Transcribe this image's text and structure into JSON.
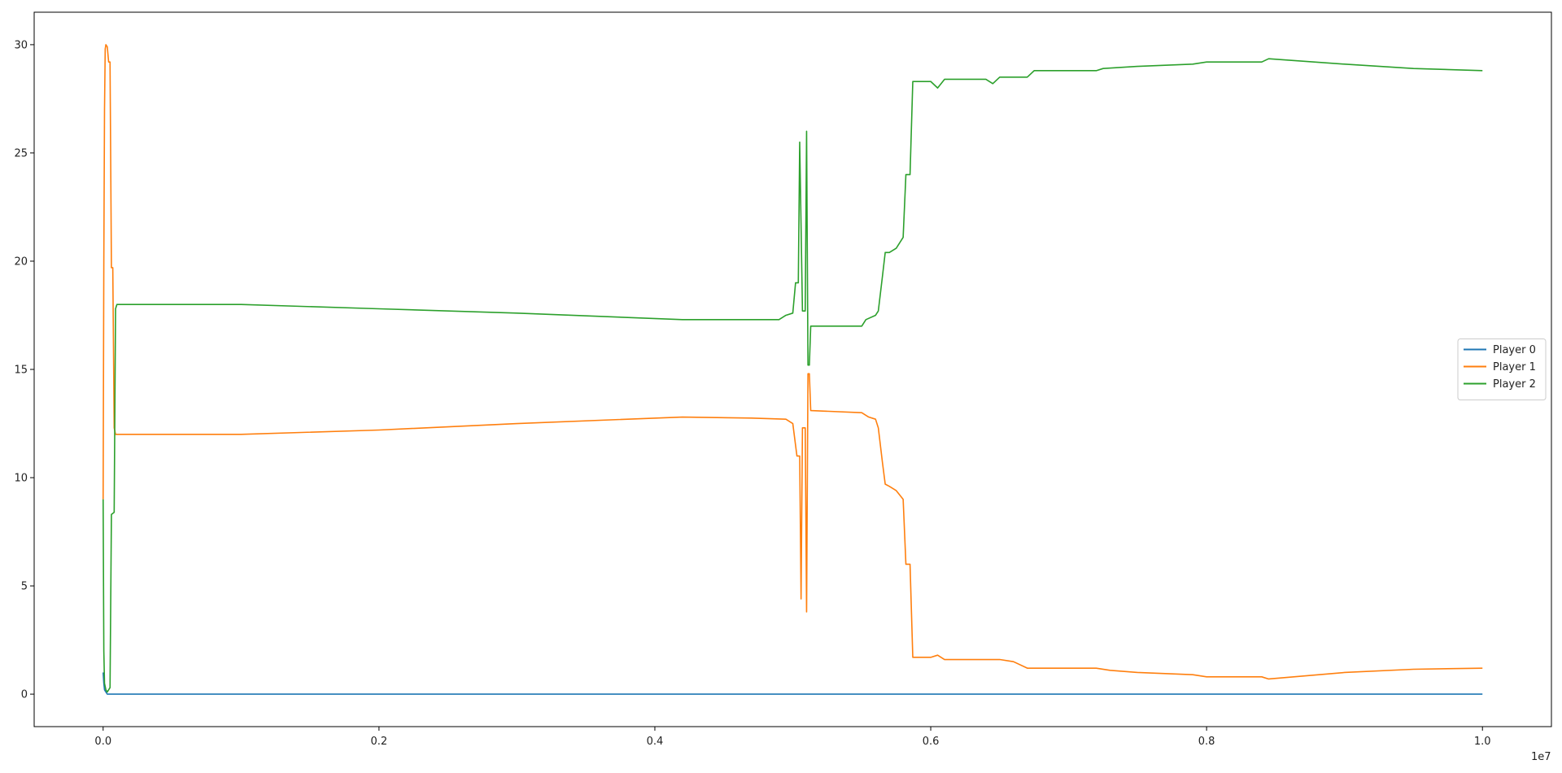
{
  "chart_data": {
    "type": "line",
    "title": "",
    "xlabel": "",
    "ylabel": "",
    "x_offset_label": "1e7",
    "xlim": [
      -0.05,
      1.05
    ],
    "ylim": [
      -1.5,
      31.5
    ],
    "xticks": [
      0.0,
      0.2,
      0.4,
      0.6,
      0.8,
      1.0
    ],
    "xtick_labels": [
      "0.0",
      "0.2",
      "0.4",
      "0.6",
      "0.8",
      "1.0"
    ],
    "yticks": [
      0,
      5,
      10,
      15,
      20,
      25,
      30
    ],
    "ytick_labels": [
      "0",
      "5",
      "10",
      "15",
      "20",
      "25",
      "30"
    ],
    "grid": false,
    "legend_position": "center-right",
    "series": [
      {
        "name": "Player 0",
        "color": "#1f77b4",
        "points": [
          [
            0.0,
            1.0
          ],
          [
            0.0005,
            0.5
          ],
          [
            0.001,
            0.2
          ],
          [
            0.002,
            0.1
          ],
          [
            0.003,
            0.0
          ],
          [
            1.0,
            0.0
          ]
        ]
      },
      {
        "name": "Player 1",
        "color": "#ff7f0e",
        "points": [
          [
            0.0,
            9.0
          ],
          [
            0.0005,
            20.0
          ],
          [
            0.001,
            27.0
          ],
          [
            0.0015,
            29.8
          ],
          [
            0.002,
            30.0
          ],
          [
            0.003,
            29.9
          ],
          [
            0.004,
            29.2
          ],
          [
            0.005,
            29.2
          ],
          [
            0.006,
            19.7
          ],
          [
            0.007,
            19.7
          ],
          [
            0.008,
            12.3
          ],
          [
            0.009,
            12.0
          ],
          [
            0.1,
            12.0
          ],
          [
            0.2,
            12.2
          ],
          [
            0.3,
            12.5
          ],
          [
            0.42,
            12.8
          ],
          [
            0.47,
            12.75
          ],
          [
            0.495,
            12.7
          ],
          [
            0.5,
            12.5
          ],
          [
            0.503,
            11.0
          ],
          [
            0.505,
            11.0
          ],
          [
            0.506,
            4.4
          ],
          [
            0.507,
            12.3
          ],
          [
            0.509,
            12.3
          ],
          [
            0.51,
            3.8
          ],
          [
            0.511,
            14.8
          ],
          [
            0.512,
            14.8
          ],
          [
            0.513,
            13.1
          ],
          [
            0.55,
            13.0
          ],
          [
            0.555,
            12.8
          ],
          [
            0.56,
            12.7
          ],
          [
            0.562,
            12.3
          ],
          [
            0.565,
            10.7
          ],
          [
            0.567,
            9.7
          ],
          [
            0.57,
            9.6
          ],
          [
            0.575,
            9.4
          ],
          [
            0.58,
            9.0
          ],
          [
            0.582,
            6.0
          ],
          [
            0.585,
            6.0
          ],
          [
            0.587,
            1.7
          ],
          [
            0.6,
            1.7
          ],
          [
            0.605,
            1.8
          ],
          [
            0.61,
            1.6
          ],
          [
            0.65,
            1.6
          ],
          [
            0.66,
            1.5
          ],
          [
            0.67,
            1.2
          ],
          [
            0.72,
            1.2
          ],
          [
            0.73,
            1.1
          ],
          [
            0.75,
            1.0
          ],
          [
            0.79,
            0.9
          ],
          [
            0.8,
            0.8
          ],
          [
            0.84,
            0.8
          ],
          [
            0.845,
            0.7
          ],
          [
            0.9,
            1.0
          ],
          [
            0.95,
            1.15
          ],
          [
            1.0,
            1.2
          ]
        ]
      },
      {
        "name": "Player 2",
        "color": "#2ca02c",
        "points": [
          [
            0.0,
            9.0
          ],
          [
            0.0005,
            2.0
          ],
          [
            0.001,
            0.5
          ],
          [
            0.002,
            0.2
          ],
          [
            0.003,
            0.1
          ],
          [
            0.005,
            0.3
          ],
          [
            0.006,
            8.3
          ],
          [
            0.008,
            8.4
          ],
          [
            0.009,
            17.8
          ],
          [
            0.01,
            18.0
          ],
          [
            0.1,
            18.0
          ],
          [
            0.2,
            17.8
          ],
          [
            0.3,
            17.6
          ],
          [
            0.42,
            17.3
          ],
          [
            0.49,
            17.3
          ],
          [
            0.495,
            17.5
          ],
          [
            0.5,
            17.6
          ],
          [
            0.502,
            19.0
          ],
          [
            0.504,
            19.0
          ],
          [
            0.505,
            25.5
          ],
          [
            0.507,
            17.7
          ],
          [
            0.509,
            17.7
          ],
          [
            0.51,
            26.0
          ],
          [
            0.511,
            15.2
          ],
          [
            0.512,
            15.2
          ],
          [
            0.513,
            17.0
          ],
          [
            0.55,
            17.0
          ],
          [
            0.553,
            17.3
          ],
          [
            0.56,
            17.5
          ],
          [
            0.562,
            17.7
          ],
          [
            0.565,
            19.3
          ],
          [
            0.567,
            20.4
          ],
          [
            0.57,
            20.4
          ],
          [
            0.575,
            20.6
          ],
          [
            0.58,
            21.1
          ],
          [
            0.582,
            24.0
          ],
          [
            0.585,
            24.0
          ],
          [
            0.587,
            28.3
          ],
          [
            0.6,
            28.3
          ],
          [
            0.605,
            28.0
          ],
          [
            0.61,
            28.4
          ],
          [
            0.64,
            28.4
          ],
          [
            0.645,
            28.2
          ],
          [
            0.65,
            28.5
          ],
          [
            0.67,
            28.5
          ],
          [
            0.675,
            28.8
          ],
          [
            0.72,
            28.8
          ],
          [
            0.725,
            28.9
          ],
          [
            0.75,
            29.0
          ],
          [
            0.79,
            29.1
          ],
          [
            0.8,
            29.2
          ],
          [
            0.84,
            29.2
          ],
          [
            0.845,
            29.35
          ],
          [
            0.9,
            29.1
          ],
          [
            0.95,
            28.9
          ],
          [
            1.0,
            28.8
          ]
        ]
      }
    ]
  }
}
